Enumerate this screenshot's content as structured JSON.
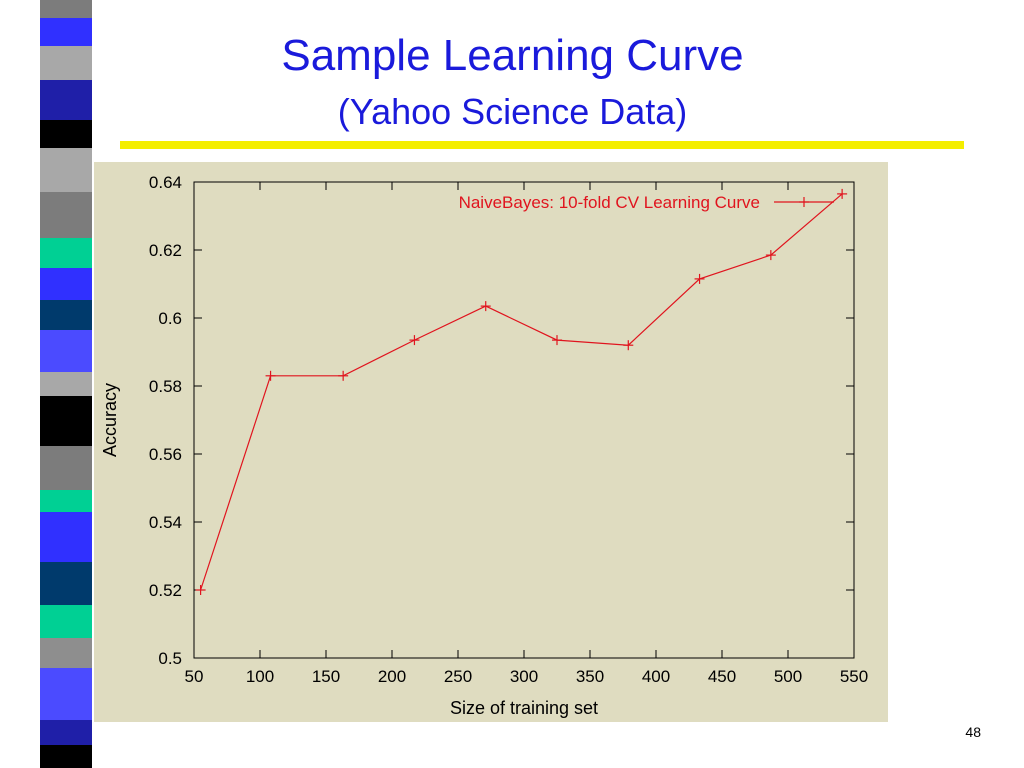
{
  "slide": {
    "title": "Sample Learning Curve",
    "subtitle": "(Yahoo Science Data)",
    "page_number": "48",
    "colors": {
      "title": "#1a1adb",
      "rule": "#f4ee00",
      "panel": "#dfdcc0",
      "series": "#e0141e",
      "legend_text": "#e0141e",
      "stripe": [
        "#3030ff",
        "#1f1fa8",
        "#000000",
        "#a8a8a8",
        "#7c7c7c",
        "#00d094",
        "#003a6c",
        "#4b4bff",
        "#8e8e8e"
      ]
    }
  },
  "chart_data": {
    "type": "line",
    "title": "",
    "xlabel": "Size of training set",
    "ylabel": "Accuracy",
    "xlim": [
      50,
      550
    ],
    "ylim": [
      0.5,
      0.64
    ],
    "xticks": [
      50,
      100,
      150,
      200,
      250,
      300,
      350,
      400,
      450,
      500,
      550
    ],
    "yticks": [
      0.5,
      0.52,
      0.54,
      0.56,
      0.58,
      0.6,
      0.62,
      0.64
    ],
    "xtick_labels": [
      "50",
      "100",
      "150",
      "200",
      "250",
      "300",
      "350",
      "400",
      "450",
      "500",
      "550"
    ],
    "ytick_labels": [
      "0.5",
      "0.52",
      "0.54",
      "0.56",
      "0.58",
      "0.6",
      "0.62",
      "0.64"
    ],
    "grid": false,
    "legend_position": "top-right",
    "series": [
      {
        "name": "NaiveBayes: 10-fold CV Learning Curve",
        "marker": "plus",
        "x": [
          55,
          108,
          163,
          217,
          271,
          325,
          379,
          433,
          487,
          541
        ],
        "y": [
          0.52,
          0.583,
          0.583,
          0.5935,
          0.6035,
          0.5935,
          0.592,
          0.6115,
          0.6185,
          0.6365
        ]
      }
    ]
  }
}
